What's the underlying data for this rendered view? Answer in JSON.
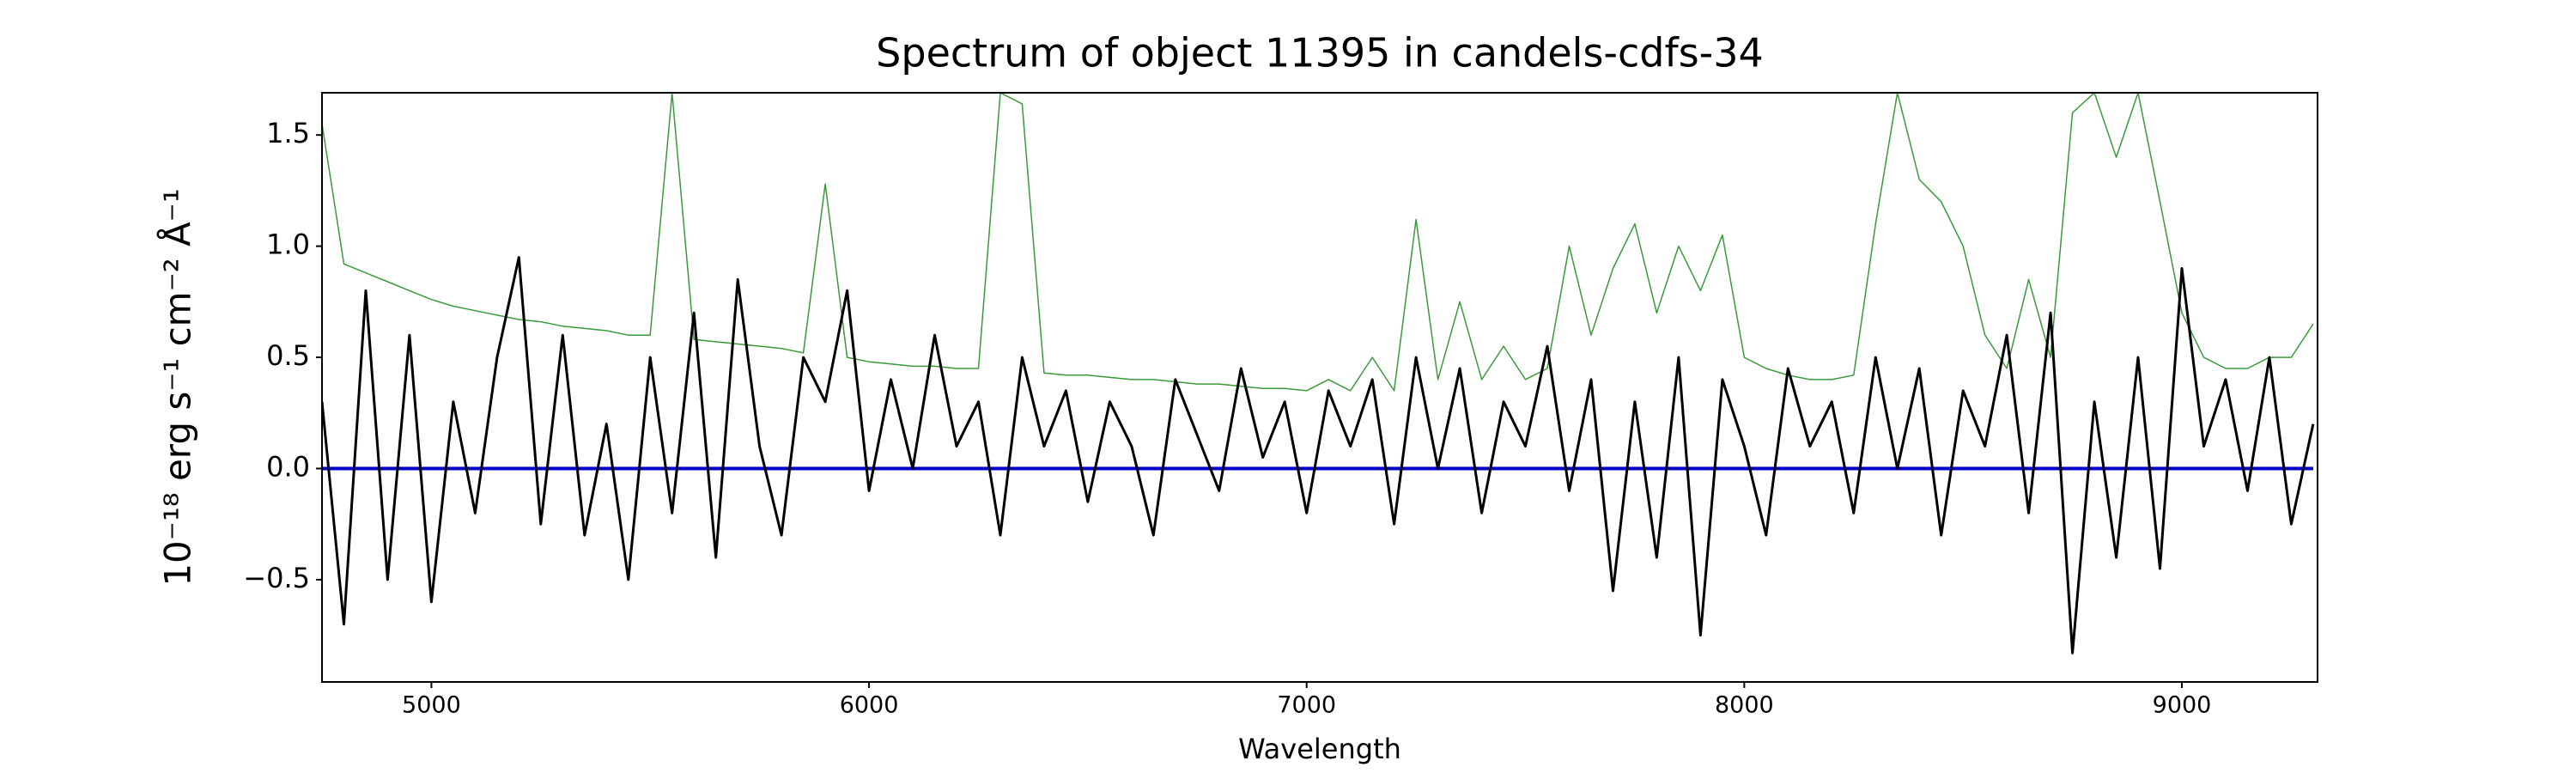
{
  "chart_data": {
    "type": "line",
    "title": "Spectrum of object 11395 in candels-cdfs-34",
    "xlabel": "Wavelength",
    "ylabel": "10⁻¹⁸ erg s⁻¹ cm⁻² Å⁻¹",
    "x": [
      4750,
      4800,
      4850,
      4900,
      4950,
      5000,
      5050,
      5100,
      5150,
      5200,
      5250,
      5300,
      5350,
      5400,
      5450,
      5500,
      5550,
      5600,
      5650,
      5700,
      5750,
      5800,
      5850,
      5900,
      5950,
      6000,
      6050,
      6100,
      6150,
      6200,
      6250,
      6300,
      6350,
      6400,
      6450,
      6500,
      6550,
      6600,
      6650,
      6700,
      6750,
      6800,
      6850,
      6900,
      6950,
      7000,
      7050,
      7100,
      7150,
      7200,
      7250,
      7300,
      7350,
      7400,
      7450,
      7500,
      7550,
      7600,
      7650,
      7700,
      7750,
      7800,
      7850,
      7900,
      7950,
      8000,
      8050,
      8100,
      8150,
      8200,
      8250,
      8300,
      8350,
      8400,
      8450,
      8500,
      8550,
      8600,
      8650,
      8700,
      8750,
      8800,
      8850,
      8900,
      8950,
      9000,
      9050,
      9100,
      9150,
      9200,
      9250,
      9300
    ],
    "series": [
      {
        "color": "#3a9a3a",
        "width": 1.5,
        "values": [
          1.55,
          0.92,
          0.88,
          0.84,
          0.8,
          0.76,
          0.73,
          0.71,
          0.69,
          0.67,
          0.66,
          0.64,
          0.63,
          0.62,
          0.6,
          0.6,
          1.69,
          0.58,
          0.57,
          0.56,
          0.55,
          0.54,
          0.52,
          1.28,
          0.5,
          0.48,
          0.47,
          0.46,
          0.46,
          0.45,
          0.45,
          1.69,
          1.64,
          0.43,
          0.42,
          0.42,
          0.41,
          0.4,
          0.4,
          0.39,
          0.38,
          0.38,
          0.37,
          0.36,
          0.36,
          0.35,
          0.4,
          0.35,
          0.5,
          0.35,
          1.12,
          0.4,
          0.75,
          0.4,
          0.55,
          0.4,
          0.45,
          1.0,
          0.6,
          0.9,
          1.1,
          0.7,
          1.0,
          0.8,
          1.05,
          0.5,
          0.45,
          0.42,
          0.4,
          0.4,
          0.42,
          1.1,
          1.69,
          1.3,
          1.2,
          1.0,
          0.6,
          0.45,
          0.85,
          0.5,
          1.6,
          1.69,
          1.4,
          1.69,
          1.2,
          0.7,
          0.5,
          0.45,
          0.45,
          0.5,
          0.5,
          0.65
        ]
      },
      {
        "color": "#0000cc",
        "width": 4,
        "values": [
          0,
          0,
          0,
          0,
          0,
          0,
          0,
          0,
          0,
          0,
          0,
          0,
          0,
          0,
          0,
          0,
          0,
          0,
          0,
          0,
          0,
          0,
          0,
          0,
          0,
          0,
          0,
          0,
          0,
          0,
          0,
          0,
          0,
          0,
          0,
          0,
          0,
          0,
          0,
          0,
          0,
          0,
          0,
          0,
          0,
          0,
          0,
          0,
          0,
          0,
          0,
          0,
          0,
          0,
          0,
          0,
          0,
          0,
          0,
          0,
          0,
          0,
          0,
          0,
          0,
          0,
          0,
          0,
          0,
          0,
          0,
          0,
          0,
          0,
          0,
          0,
          0,
          0,
          0,
          0,
          0,
          0,
          0,
          0,
          0,
          0,
          0,
          0,
          0,
          0,
          0,
          0
        ]
      },
      {
        "color": "#000000",
        "width": 3,
        "values": [
          0.3,
          -0.7,
          0.8,
          -0.5,
          0.6,
          -0.6,
          0.3,
          -0.2,
          0.5,
          0.95,
          -0.25,
          0.6,
          -0.3,
          0.2,
          -0.5,
          0.5,
          -0.2,
          0.7,
          -0.4,
          0.85,
          0.1,
          -0.3,
          0.5,
          0.3,
          0.8,
          -0.1,
          0.4,
          0.0,
          0.6,
          0.1,
          0.3,
          -0.3,
          0.5,
          0.1,
          0.35,
          -0.15,
          0.3,
          0.1,
          -0.3,
          0.4,
          0.15,
          -0.1,
          0.45,
          0.05,
          0.3,
          -0.2,
          0.35,
          0.1,
          0.4,
          -0.25,
          0.5,
          0.0,
          0.45,
          -0.2,
          0.3,
          0.1,
          0.55,
          -0.1,
          0.4,
          -0.55,
          0.3,
          -0.4,
          0.5,
          -0.75,
          0.4,
          0.1,
          -0.3,
          0.45,
          0.1,
          0.3,
          -0.2,
          0.5,
          0.0,
          0.45,
          -0.3,
          0.35,
          0.1,
          0.6,
          -0.2,
          0.7,
          -0.83,
          0.3,
          -0.4,
          0.5,
          -0.45,
          0.9,
          0.1,
          0.4,
          -0.1,
          0.5,
          -0.25,
          0.2
        ]
      }
    ],
    "xlim": [
      4750,
      9310
    ],
    "ylim": [
      -0.96,
      1.69
    ],
    "xticks": [
      5000,
      6000,
      7000,
      8000,
      9000
    ],
    "yticks": [
      {
        "value": -0.5,
        "label": "−0.5"
      },
      {
        "value": 0,
        "label": "0.0"
      },
      0.5,
      {
        "value": 1,
        "label": "1.0"
      },
      1.5
    ]
  }
}
